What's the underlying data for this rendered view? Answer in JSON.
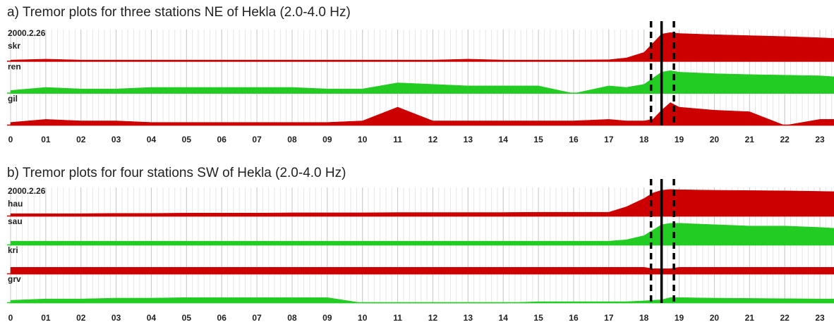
{
  "chart_data": [
    {
      "type": "area",
      "title": "a) Tremor plots for three stations NE of Hekla (2.0-4.0 Hz)",
      "date": "2000.2.26",
      "x": [
        0,
        1,
        2,
        3,
        4,
        5,
        6,
        7,
        8,
        9,
        10,
        11,
        12,
        13,
        14,
        15,
        16,
        17,
        17.5,
        18,
        18.25,
        18.5,
        18.75,
        19,
        20,
        21,
        22,
        23,
        23.4
      ],
      "xlim": [
        0,
        23.4
      ],
      "xticks": [
        0,
        {
          "value": 1,
          "label": "01"
        },
        {
          "value": 2,
          "label": "02"
        },
        {
          "value": 3,
          "label": "03"
        },
        {
          "value": 4,
          "label": "04"
        },
        {
          "value": 5,
          "label": "05"
        },
        {
          "value": 6,
          "label": "06"
        },
        {
          "value": 7,
          "label": "07"
        },
        {
          "value": 8,
          "label": "08"
        },
        {
          "value": 9,
          "label": "09"
        },
        10,
        11,
        12,
        13,
        14,
        15,
        16,
        17,
        18,
        19,
        20,
        21,
        22,
        23
      ],
      "ylim": [
        0,
        100
      ],
      "grid": true,
      "series": [
        {
          "name": "skr",
          "color": "#cc0000",
          "values": [
            5,
            8,
            5,
            5,
            5,
            5,
            5,
            5,
            5,
            5,
            5,
            5,
            5,
            8,
            5,
            5,
            5,
            6,
            12,
            30,
            60,
            90,
            95,
            92,
            88,
            85,
            82,
            78,
            76
          ]
        },
        {
          "name": "ren",
          "color": "#22cc22",
          "values": [
            10,
            20,
            15,
            15,
            20,
            20,
            20,
            20,
            20,
            15,
            15,
            35,
            30,
            25,
            25,
            25,
            0,
            25,
            20,
            30,
            50,
            70,
            75,
            70,
            65,
            62,
            60,
            58,
            55
          ]
        },
        {
          "name": "gil",
          "color": "#cc0000",
          "values": [
            10,
            20,
            15,
            15,
            10,
            10,
            10,
            10,
            10,
            10,
            15,
            60,
            15,
            15,
            15,
            15,
            15,
            20,
            15,
            15,
            20,
            50,
            75,
            60,
            50,
            45,
            0,
            20,
            20
          ]
        }
      ],
      "markers": [
        {
          "value": 18.2,
          "style": "dashed"
        },
        {
          "value": 18.5,
          "style": "solid"
        },
        {
          "value": 18.85,
          "style": "dashed"
        }
      ]
    },
    {
      "type": "area",
      "title": "b) Tremor plots for four stations SW of Hekla (2.0-4.0 Hz)",
      "date": "2000.2.26",
      "x": [
        0,
        1,
        2,
        3,
        4,
        5,
        6,
        7,
        8,
        9,
        10,
        11,
        12,
        13,
        14,
        15,
        16,
        17,
        17.5,
        18,
        18.25,
        18.5,
        18.75,
        19,
        20,
        21,
        22,
        23,
        23.4
      ],
      "xlim": [
        0,
        23.4
      ],
      "xticks": [
        0,
        {
          "value": 1,
          "label": "01"
        },
        {
          "value": 2,
          "label": "02"
        },
        {
          "value": 3,
          "label": "03"
        },
        {
          "value": 4,
          "label": "04"
        },
        {
          "value": 5,
          "label": "05"
        },
        {
          "value": 6,
          "label": "06"
        },
        {
          "value": 7,
          "label": "07"
        },
        {
          "value": 8,
          "label": "08"
        },
        {
          "value": 9,
          "label": "09"
        },
        10,
        11,
        12,
        13,
        14,
        15,
        16,
        17,
        18,
        19,
        20,
        21,
        22,
        23
      ],
      "ylim": [
        0,
        100
      ],
      "grid": true,
      "series": [
        {
          "name": "hau",
          "color": "#cc0000",
          "values": [
            10,
            10,
            10,
            11,
            11,
            12,
            12,
            12,
            13,
            13,
            13,
            14,
            14,
            14,
            14,
            15,
            15,
            15,
            35,
            65,
            85,
            95,
            98,
            97,
            95,
            94,
            93,
            91,
            90
          ]
        },
        {
          "name": "sau",
          "color": "#22cc22",
          "values": [
            15,
            15,
            15,
            15,
            15,
            15,
            15,
            15,
            15,
            15,
            15,
            15,
            15,
            15,
            15,
            15,
            15,
            15,
            20,
            35,
            55,
            75,
            80,
            80,
            75,
            70,
            70,
            65,
            62
          ]
        },
        {
          "name": "kri",
          "color": "#cc0000",
          "values": [
            25,
            25,
            25,
            25,
            25,
            25,
            25,
            25,
            25,
            25,
            25,
            25,
            25,
            25,
            25,
            25,
            25,
            25,
            25,
            25,
            20,
            20,
            20,
            25,
            25,
            25,
            25,
            25,
            25
          ]
        },
        {
          "name": "grv",
          "color": "#22cc22",
          "values": [
            10,
            15,
            15,
            18,
            18,
            20,
            20,
            20,
            20,
            20,
            0,
            0,
            0,
            0,
            0,
            5,
            5,
            5,
            5,
            8,
            10,
            12,
            20,
            20,
            18,
            17,
            16,
            15,
            15
          ]
        }
      ],
      "markers": [
        {
          "value": 18.2,
          "style": "dashed"
        },
        {
          "value": 18.5,
          "style": "solid"
        },
        {
          "value": 18.85,
          "style": "dashed"
        }
      ]
    }
  ]
}
